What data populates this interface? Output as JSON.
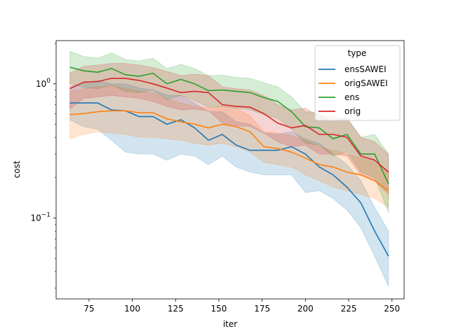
{
  "chart_data": {
    "type": "line",
    "title": "",
    "xlabel": "iter",
    "ylabel": "cost",
    "yscale": "log",
    "xlim": [
      56,
      257
    ],
    "ylim": [
      0.025,
      2.1
    ],
    "xticks": [
      75,
      100,
      125,
      150,
      175,
      200,
      225,
      250
    ],
    "yticks": [
      {
        "value": 0.1,
        "base": "10",
        "exp": "−1"
      },
      {
        "value": 1,
        "base": "10",
        "exp": "0"
      }
    ],
    "grid": false,
    "legend": {
      "title": "type",
      "position": "top-right"
    },
    "x": [
      64,
      72,
      80,
      88,
      96,
      104,
      112,
      120,
      128,
      136,
      144,
      152,
      160,
      168,
      176,
      184,
      192,
      200,
      208,
      216,
      224,
      232,
      240,
      248
    ],
    "series": [
      {
        "name": "ensSAWEI",
        "color": "#1f77b4",
        "values": [
          0.72,
          0.72,
          0.72,
          0.64,
          0.63,
          0.57,
          0.57,
          0.5,
          0.54,
          0.47,
          0.38,
          0.42,
          0.35,
          0.32,
          0.32,
          0.32,
          0.34,
          0.3,
          0.24,
          0.21,
          0.17,
          0.13,
          0.08,
          0.052
        ],
        "lower": [
          0.54,
          0.48,
          0.46,
          0.38,
          0.31,
          0.3,
          0.3,
          0.27,
          0.3,
          0.29,
          0.25,
          0.29,
          0.24,
          0.22,
          0.21,
          0.21,
          0.21,
          0.155,
          0.16,
          0.14,
          0.115,
          0.085,
          0.052,
          0.031
        ],
        "upper": [
          0.95,
          1.02,
          1.06,
          1.0,
          1.0,
          0.93,
          0.9,
          0.82,
          0.82,
          0.72,
          0.62,
          0.62,
          0.52,
          0.5,
          0.43,
          0.42,
          0.44,
          0.39,
          0.36,
          0.3,
          0.25,
          0.19,
          0.12,
          0.08
        ]
      },
      {
        "name": "origSAWEI",
        "color": "#ff7f0e",
        "values": [
          0.59,
          0.6,
          0.62,
          0.63,
          0.63,
          0.61,
          0.61,
          0.55,
          0.52,
          0.5,
          0.47,
          0.5,
          0.48,
          0.44,
          0.34,
          0.33,
          0.31,
          0.28,
          0.25,
          0.24,
          0.22,
          0.21,
          0.19,
          0.16
        ],
        "lower": [
          0.39,
          0.42,
          0.44,
          0.43,
          0.42,
          0.4,
          0.4,
          0.39,
          0.38,
          0.36,
          0.35,
          0.36,
          0.34,
          0.31,
          0.26,
          0.25,
          0.24,
          0.21,
          0.19,
          0.17,
          0.16,
          0.15,
          0.14,
          0.12
        ],
        "upper": [
          0.88,
          0.92,
          0.95,
          0.97,
          0.92,
          0.88,
          0.86,
          0.77,
          0.72,
          0.68,
          0.66,
          0.68,
          0.66,
          0.58,
          0.44,
          0.43,
          0.41,
          0.38,
          0.34,
          0.32,
          0.3,
          0.28,
          0.26,
          0.22
        ]
      },
      {
        "name": "ens",
        "color": "#2ca02c",
        "values": [
          1.33,
          1.25,
          1.22,
          1.3,
          1.17,
          1.14,
          1.2,
          1.0,
          1.08,
          1.0,
          0.89,
          0.9,
          0.88,
          0.86,
          0.79,
          0.74,
          0.62,
          0.48,
          0.47,
          0.39,
          0.42,
          0.3,
          0.3,
          0.18
        ],
        "lower": [
          1.0,
          0.94,
          0.92,
          0.98,
          0.88,
          0.86,
          0.9,
          0.76,
          0.82,
          0.75,
          0.67,
          0.68,
          0.66,
          0.64,
          0.59,
          0.55,
          0.46,
          0.36,
          0.35,
          0.29,
          0.31,
          0.22,
          0.2,
          0.11
        ],
        "upper": [
          1.75,
          1.6,
          1.55,
          1.7,
          1.52,
          1.48,
          1.55,
          1.3,
          1.4,
          1.3,
          1.15,
          1.16,
          1.12,
          1.1,
          1.02,
          0.95,
          0.8,
          0.62,
          0.61,
          0.52,
          0.56,
          0.4,
          0.42,
          0.3
        ]
      },
      {
        "name": "orig",
        "color": "#d62728",
        "values": [
          0.92,
          1.03,
          1.04,
          1.1,
          1.1,
          1.06,
          1.0,
          0.93,
          0.86,
          0.88,
          0.86,
          0.7,
          0.68,
          0.67,
          0.6,
          0.51,
          0.47,
          0.49,
          0.42,
          0.42,
          0.4,
          0.29,
          0.27,
          0.22
        ],
        "lower": [
          0.65,
          0.78,
          0.8,
          0.82,
          0.8,
          0.78,
          0.74,
          0.68,
          0.64,
          0.65,
          0.63,
          0.51,
          0.49,
          0.48,
          0.43,
          0.37,
          0.34,
          0.35,
          0.3,
          0.3,
          0.29,
          0.21,
          0.19,
          0.15
        ],
        "upper": [
          1.2,
          1.35,
          1.38,
          1.42,
          1.42,
          1.38,
          1.32,
          1.24,
          1.15,
          1.18,
          1.15,
          0.95,
          0.92,
          0.9,
          0.82,
          0.7,
          0.64,
          0.66,
          0.57,
          0.57,
          0.55,
          0.4,
          0.37,
          0.3
        ]
      }
    ]
  }
}
